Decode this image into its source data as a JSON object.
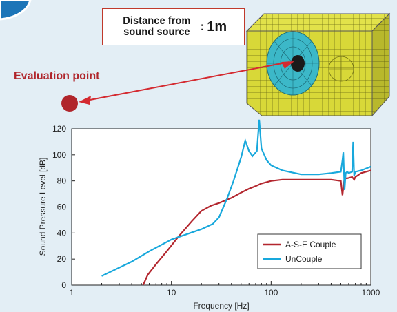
{
  "distance_box": {
    "label_line1": "Distance from",
    "label_line2": "sound source",
    "separator": ":",
    "value": "1m"
  },
  "evaluation_point_label": "Evaluation point",
  "colors": {
    "accent_red": "#c0392b",
    "couple": "#b3262e",
    "uncouple": "#18a8dc",
    "mesh": "#d8d838",
    "sphere": "#3cb8c8"
  },
  "chart_data": {
    "type": "line",
    "xscale": "log",
    "xlim": [
      1,
      1000
    ],
    "ylim": [
      0,
      120
    ],
    "xlabel": "Frequency [Hz]",
    "ylabel": "Sound Pressure Level [dB]",
    "xticks": [
      1,
      10,
      100,
      1000
    ],
    "xtick_labels": [
      "1",
      "10",
      "100",
      "1000"
    ],
    "yticks": [
      0,
      20,
      40,
      60,
      80,
      100,
      120
    ],
    "ytick_labels": [
      "0",
      "20",
      "40",
      "60",
      "80",
      "100",
      "120"
    ],
    "grid": false,
    "legend_position": "bottom-right",
    "series": [
      {
        "name": "A-S-E Couple",
        "x": [
          5.2,
          5.8,
          7,
          9,
          12,
          16,
          20,
          25,
          30,
          40,
          50,
          60,
          70,
          80,
          100,
          130,
          200,
          300,
          400,
          500,
          520,
          540,
          560,
          580,
          650,
          680,
          700,
          800,
          1000
        ],
        "y": [
          0,
          8,
          16,
          26,
          38,
          49,
          57,
          61,
          63,
          67,
          71,
          74,
          76,
          78,
          80,
          81,
          81,
          81,
          81,
          80,
          69,
          80,
          82,
          82,
          83,
          81,
          83,
          86,
          88
        ]
      },
      {
        "name": "UnCouple",
        "x": [
          2,
          4,
          6,
          10,
          20,
          26,
          30,
          36,
          42,
          50,
          55,
          60,
          65,
          72,
          76,
          80,
          90,
          100,
          130,
          200,
          300,
          400,
          500,
          520,
          530,
          545,
          560,
          580,
          600,
          650,
          665,
          680,
          700,
          800,
          1000
        ],
        "y": [
          7,
          18,
          26,
          35,
          43,
          47,
          52,
          66,
          80,
          98,
          111,
          103,
          99,
          103,
          127,
          105,
          96,
          92,
          88,
          85,
          85,
          86,
          87,
          96,
          102,
          73,
          86,
          87,
          86,
          87,
          110,
          84,
          87,
          88,
          91
        ]
      }
    ]
  }
}
